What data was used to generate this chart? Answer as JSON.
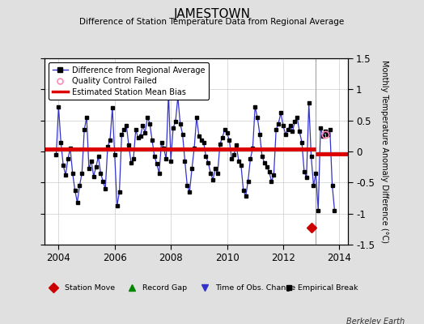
{
  "title": "JAMESTOWN",
  "subtitle": "Difference of Station Temperature Data from Regional Average",
  "ylabel": "Monthly Temperature Anomaly Difference (°C)",
  "xlim": [
    2003.5,
    2014.3
  ],
  "ylim": [
    -1.5,
    1.5
  ],
  "yticks": [
    -1.5,
    -1.0,
    -0.5,
    0.0,
    0.5,
    1.0,
    1.5
  ],
  "xticks": [
    2004,
    2006,
    2008,
    2010,
    2012,
    2014
  ],
  "bias_value1": 0.04,
  "bias_break_x": 2013.17,
  "bias_value2": -0.04,
  "station_move_x": 2013.0,
  "station_move_y": -1.22,
  "qc_fail_x": 2013.5,
  "qc_fail_y": 0.28,
  "background_color": "#e0e0e0",
  "plot_bg_color": "#ffffff",
  "line_color": "#3333cc",
  "marker_color": "#000000",
  "bias_color": "#dd0000",
  "grid_color": "#cccccc",
  "berkeley_earth_text": "Berkeley Earth",
  "time_data": [
    2003.917,
    2004.0,
    2004.083,
    2004.167,
    2004.25,
    2004.333,
    2004.417,
    2004.5,
    2004.583,
    2004.667,
    2004.75,
    2004.833,
    2004.917,
    2005.0,
    2005.083,
    2005.167,
    2005.25,
    2005.333,
    2005.417,
    2005.5,
    2005.583,
    2005.667,
    2005.75,
    2005.833,
    2005.917,
    2006.0,
    2006.083,
    2006.167,
    2006.25,
    2006.333,
    2006.417,
    2006.5,
    2006.583,
    2006.667,
    2006.75,
    2006.833,
    2006.917,
    2007.0,
    2007.083,
    2007.167,
    2007.25,
    2007.333,
    2007.417,
    2007.5,
    2007.583,
    2007.667,
    2007.75,
    2007.833,
    2007.917,
    2008.0,
    2008.083,
    2008.167,
    2008.25,
    2008.333,
    2008.417,
    2008.5,
    2008.583,
    2008.667,
    2008.75,
    2008.833,
    2008.917,
    2009.0,
    2009.083,
    2009.167,
    2009.25,
    2009.333,
    2009.417,
    2009.5,
    2009.583,
    2009.667,
    2009.75,
    2009.833,
    2009.917,
    2010.0,
    2010.083,
    2010.167,
    2010.25,
    2010.333,
    2010.417,
    2010.5,
    2010.583,
    2010.667,
    2010.75,
    2010.833,
    2010.917,
    2011.0,
    2011.083,
    2011.167,
    2011.25,
    2011.333,
    2011.417,
    2011.5,
    2011.583,
    2011.667,
    2011.75,
    2011.833,
    2011.917,
    2012.0,
    2012.083,
    2012.167,
    2012.25,
    2012.333,
    2012.417,
    2012.5,
    2012.583,
    2012.667,
    2012.75,
    2012.833,
    2012.917,
    2013.0,
    2013.083,
    2013.167,
    2013.25,
    2013.333,
    2013.417,
    2013.5,
    2013.583,
    2013.667,
    2013.75,
    2013.833
  ],
  "temp_data": [
    -0.05,
    0.72,
    0.15,
    -0.22,
    -0.38,
    -0.12,
    0.05,
    -0.35,
    -0.62,
    -0.82,
    -0.55,
    -0.35,
    0.35,
    0.55,
    -0.28,
    -0.15,
    -0.4,
    -0.25,
    -0.08,
    -0.35,
    -0.48,
    -0.6,
    0.08,
    0.18,
    0.7,
    -0.05,
    -0.88,
    -0.65,
    0.28,
    0.35,
    0.42,
    0.1,
    -0.18,
    -0.12,
    0.35,
    0.22,
    0.25,
    0.42,
    0.3,
    0.55,
    0.45,
    0.18,
    -0.08,
    -0.2,
    -0.35,
    0.15,
    0.05,
    -0.12,
    0.95,
    -0.15,
    0.38,
    0.48,
    0.88,
    0.45,
    0.28,
    -0.15,
    -0.55,
    -0.65,
    -0.28,
    0.05,
    0.55,
    0.25,
    0.18,
    0.15,
    -0.08,
    -0.18,
    -0.35,
    -0.45,
    -0.28,
    -0.35,
    0.12,
    0.22,
    0.35,
    0.3,
    0.18,
    -0.12,
    -0.05,
    0.1,
    -0.15,
    -0.22,
    -0.62,
    -0.72,
    -0.48,
    -0.12,
    0.05,
    0.72,
    0.55,
    0.28,
    -0.08,
    -0.18,
    -0.25,
    -0.32,
    -0.48,
    -0.38,
    0.35,
    0.45,
    0.62,
    0.42,
    0.28,
    0.35,
    0.42,
    0.32,
    0.48,
    0.55,
    0.32,
    0.15,
    -0.32,
    -0.42,
    0.78,
    -0.08,
    -0.55,
    -0.35,
    -0.95,
    0.38,
    0.25,
    0.32,
    0.28,
    0.35,
    -0.55,
    -0.95
  ]
}
